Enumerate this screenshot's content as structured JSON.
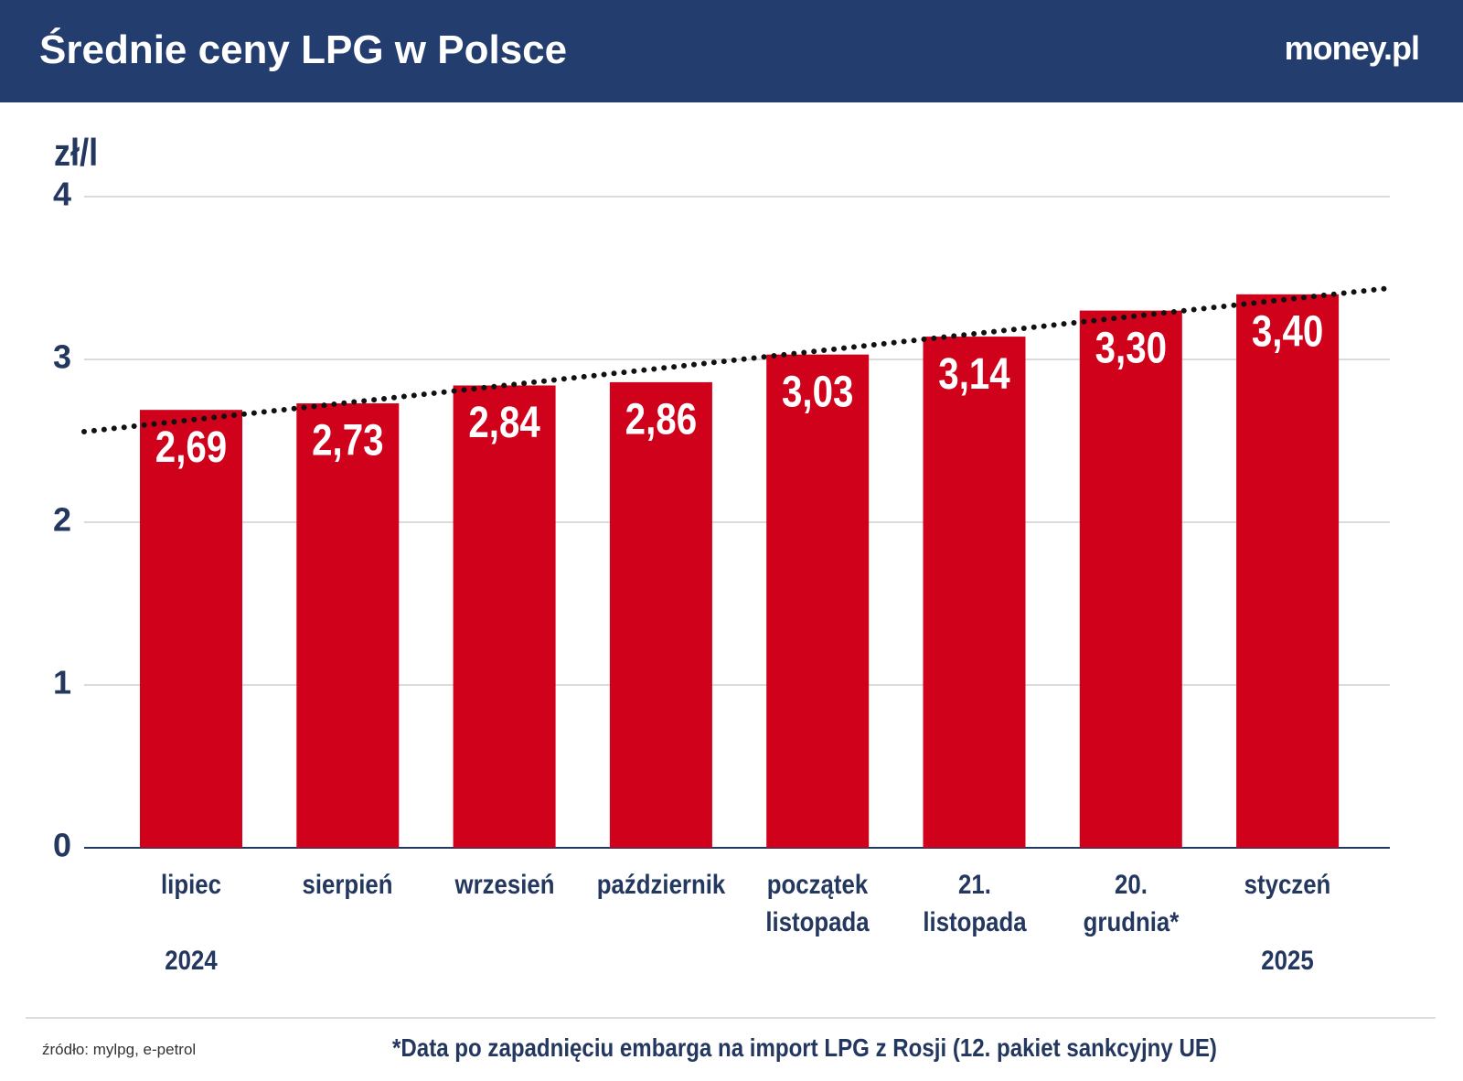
{
  "header": {
    "title": "Średnie ceny LPG w Polsce",
    "logo": "money.pl"
  },
  "chart_data": {
    "type": "bar",
    "y_label": "zł/l",
    "categories": [
      "lipiec",
      "sierpień",
      "wrzesień",
      "październik",
      "początek\nlistopada",
      "21.\nlistopada",
      "20.\ngrudnia*",
      "styczeń"
    ],
    "period_labels": [
      "2024",
      null,
      null,
      null,
      null,
      null,
      null,
      "2025"
    ],
    "values": [
      2.69,
      2.73,
      2.84,
      2.86,
      3.03,
      3.14,
      3.3,
      3.4
    ],
    "value_labels": [
      "2,69",
      "2,73",
      "2,84",
      "2,86",
      "3,03",
      "3,14",
      "3,30",
      "3,40"
    ],
    "color": "#d0021b",
    "ylim": [
      0,
      4
    ],
    "yticks": [
      0,
      1,
      2,
      3,
      4
    ],
    "grid": true,
    "trendline": true
  },
  "footer": {
    "source": "źródło: mylpg, e-petrol",
    "note": "*Data po zapadnięciu embarga na import LPG z Rosji (12. pakiet sankcyjny UE)"
  }
}
